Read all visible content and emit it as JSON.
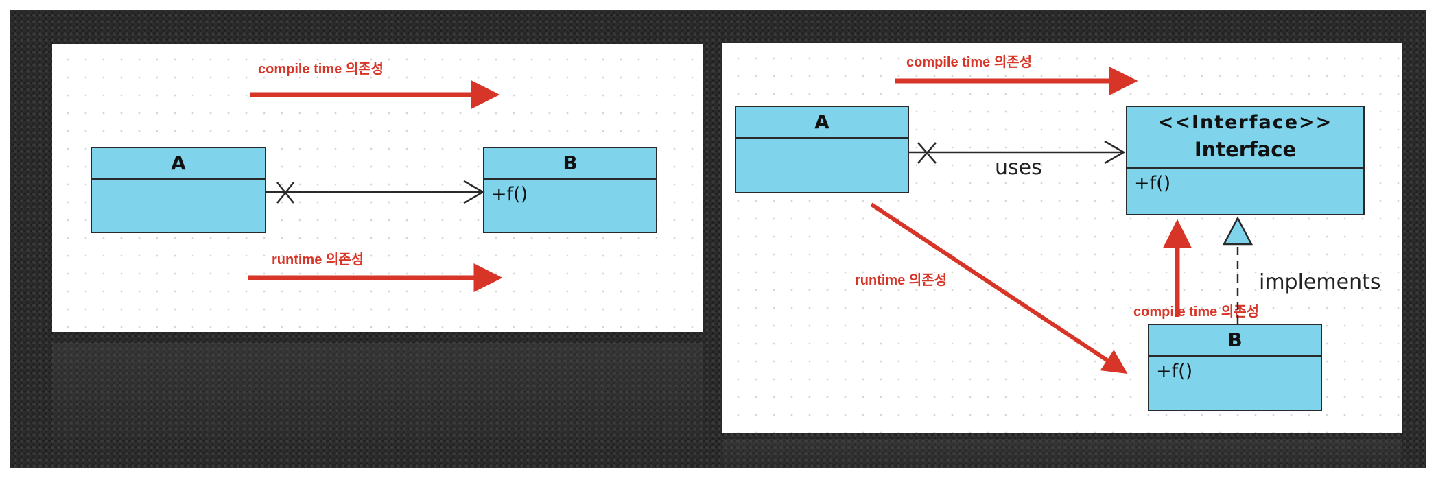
{
  "left_diagram": {
    "arrow_top_label": "compile time 의존성",
    "arrow_bottom_label": "runtime 의존성",
    "class_a": {
      "name": "A",
      "members": ""
    },
    "class_b": {
      "name": "B",
      "members": "+f()"
    }
  },
  "right_diagram": {
    "arrow_top_label": "compile time 의존성",
    "arrow_diag_label": "runtime 의존성",
    "arrow_up_label": "compile time 의존성",
    "uses_label": "uses",
    "implements_label": "implements",
    "class_a": {
      "name": "A",
      "members": ""
    },
    "interface": {
      "stereotype": "<<Interface>>",
      "name": "Interface",
      "members": "+f()"
    },
    "class_b": {
      "name": "B",
      "members": "+f()"
    }
  },
  "colors": {
    "class_fill": "#7fd3ea",
    "dependency_arrow": "#d73527"
  }
}
